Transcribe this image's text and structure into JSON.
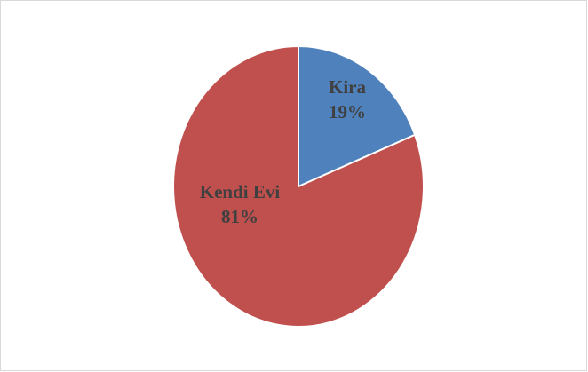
{
  "chart_data": {
    "type": "pie",
    "categories": [
      "Kira",
      "Kendi Evi"
    ],
    "values": [
      19,
      81
    ],
    "value_labels": [
      "19%",
      "81%"
    ],
    "colors": [
      "#4f81bd",
      "#c0504d"
    ]
  }
}
